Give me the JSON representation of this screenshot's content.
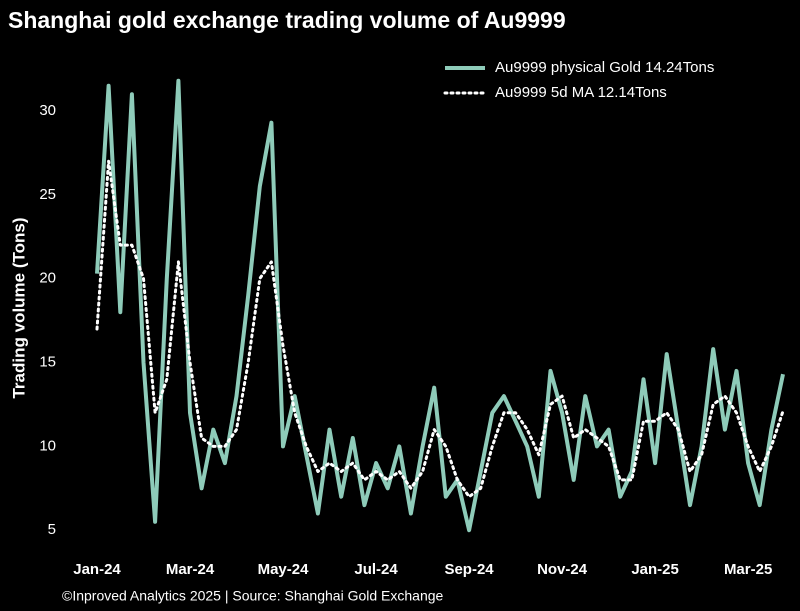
{
  "chart_data": {
    "type": "line",
    "title": "Shanghai gold exchange trading volume of Au9999",
    "y_label": "Trading volume (Tons)",
    "source": "©Inproved Analytics 2025 | Source: Shanghai Gold Exchange",
    "categories": [
      "Jan-24",
      null,
      null,
      null,
      null,
      null,
      null,
      null,
      "Mar-24",
      null,
      null,
      null,
      null,
      null,
      null,
      null,
      "May-24",
      null,
      null,
      null,
      null,
      null,
      null,
      null,
      "Jul-24",
      null,
      null,
      null,
      null,
      null,
      null,
      null,
      "Sep-24",
      null,
      null,
      null,
      null,
      null,
      null,
      null,
      "Nov-24",
      null,
      null,
      null,
      null,
      null,
      null,
      null,
      "Jan-25",
      null,
      null,
      null,
      null,
      null,
      null,
      null,
      "Mar-25",
      null,
      null,
      null
    ],
    "series": [
      {
        "name": "Au9999 physical Gold 14.24Tons",
        "color": "#8ecbb9",
        "style": "solid",
        "values": [
          20.3,
          31.5,
          18,
          31,
          15,
          5.5,
          20,
          31.8,
          12,
          7.5,
          11,
          9,
          13,
          19,
          25.5,
          29.3,
          10,
          13,
          9.5,
          6,
          11,
          7,
          10.5,
          6.5,
          9,
          7.5,
          10,
          6,
          10,
          13.5,
          7,
          8,
          5,
          8.5,
          12,
          13,
          11.5,
          10,
          7,
          14.5,
          12,
          8,
          13,
          10,
          11,
          7,
          8.5,
          14,
          9,
          15.5,
          11,
          6.5,
          10,
          15.8,
          11,
          14.5,
          9,
          6.5,
          11,
          14.3
        ]
      },
      {
        "name": "Au9999 5d MA 12.14Tons",
        "color": "#ffffff",
        "style": "dotted",
        "values": [
          17,
          27,
          22,
          22,
          20,
          12,
          14,
          21,
          15,
          10.5,
          10,
          10,
          11,
          15,
          20,
          21,
          16,
          12,
          10,
          8.5,
          9,
          8.5,
          9,
          8,
          8.5,
          8,
          8.5,
          7.5,
          8.5,
          11,
          10,
          8,
          7,
          7.5,
          10,
          12,
          12,
          11,
          9.5,
          12.5,
          13,
          10.5,
          11,
          10.5,
          10,
          8,
          8,
          11.5,
          11.5,
          12,
          11,
          8.5,
          9.5,
          12.5,
          13,
          12,
          10,
          8.5,
          10,
          12.1
        ]
      }
    ],
    "ylim": [
      4,
      32.5
    ],
    "yticks": [
      5,
      10,
      15,
      20,
      25,
      30
    ],
    "grid": false,
    "legend": "upper right"
  }
}
